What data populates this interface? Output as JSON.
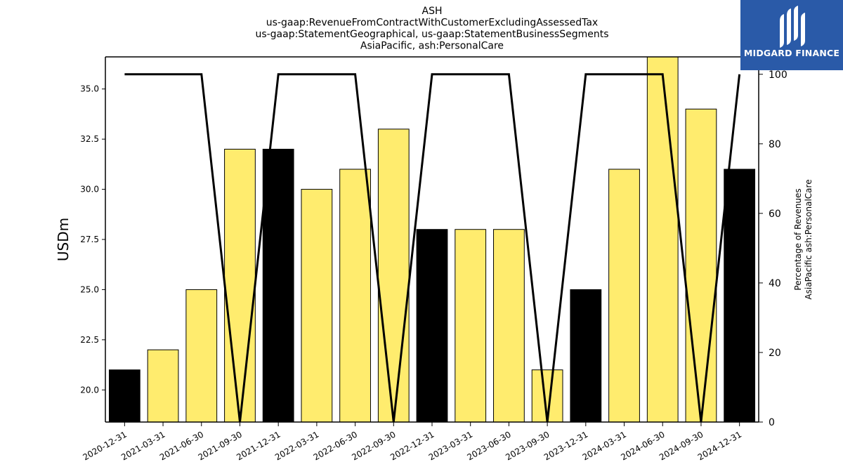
{
  "chart_data": {
    "type": "bar",
    "title_lines": [
      "ASH",
      "us-gaap:RevenueFromContractWithCustomerExcludingAssessedTax",
      "us-gaap:StatementGeographical, us-gaap:StatementBusinessSegments",
      "AsiaPacific, ash:PersonalCare"
    ],
    "ylabel": "USDm",
    "y2label_lines": [
      "Percentage of Revenues",
      "AsiaPacific ash:PersonalCare"
    ],
    "categories": [
      "2020-12-31",
      "2021-03-31",
      "2021-06-30",
      "2021-09-30",
      "2021-12-31",
      "2022-03-31",
      "2022-06-30",
      "2022-09-30",
      "2022-12-31",
      "2023-03-31",
      "2023-06-30",
      "2023-09-30",
      "2023-12-31",
      "2024-03-31",
      "2024-06-30",
      "2024-09-30",
      "2024-12-31"
    ],
    "values": [
      21,
      22,
      25,
      32,
      32,
      30,
      31,
      33,
      28,
      28,
      28,
      21,
      25,
      31,
      37,
      34,
      31
    ],
    "bar_colors": [
      "#000000",
      "#ffec6e",
      "#ffec6e",
      "#ffec6e",
      "#000000",
      "#ffec6e",
      "#ffec6e",
      "#ffec6e",
      "#000000",
      "#ffec6e",
      "#ffec6e",
      "#ffec6e",
      "#000000",
      "#ffec6e",
      "#ffec6e",
      "#ffec6e",
      "#000000"
    ],
    "percentage_line": [
      100,
      100,
      100,
      0,
      100,
      100,
      100,
      0,
      100,
      100,
      100,
      0,
      100,
      100,
      100,
      0,
      100
    ],
    "ylim": [
      18.4,
      36.6
    ],
    "y_ticks": [
      "20.0",
      "22.5",
      "25.0",
      "27.5",
      "30.0",
      "32.5",
      "35.0"
    ],
    "y2lim": [
      0,
      105
    ],
    "y2_ticks": [
      "0",
      "20",
      "40",
      "60",
      "80",
      "100"
    ],
    "grid": false,
    "legend": "none"
  },
  "logo": {
    "text": "MIDGARD FINANCE",
    "color": "#2a5aa8"
  }
}
